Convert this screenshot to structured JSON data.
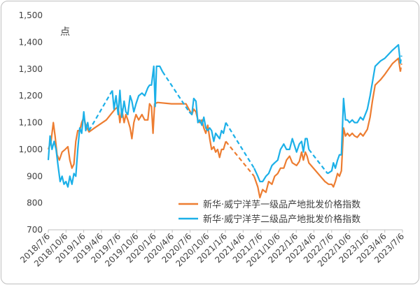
{
  "chart_data": {
    "type": "line",
    "unit_label": "点",
    "ylim": [
      700,
      1500
    ],
    "y_ticks": [
      "700",
      "800",
      "900",
      "1,000",
      "1,100",
      "1,200",
      "1,300",
      "1,400",
      "1,500"
    ],
    "x_ticks": [
      "2018/7/6",
      "2018/10/6",
      "2019/1/6",
      "2019/4/6",
      "2019/7/6",
      "2019/10/6",
      "2020/1/6",
      "2020/4/6",
      "2020/7/6",
      "2020/10/6",
      "2021/1/6",
      "2021/4/6",
      "2021/7/6",
      "2021/10/6",
      "2022/1/6",
      "2022/4/6",
      "2022/7/6",
      "2022/10/6",
      "2023/1/6",
      "2023/4/6",
      "2023/7/6"
    ],
    "grid": "none",
    "legend_position": "bottom-right",
    "colors": {
      "series1": "#ED7D31",
      "series2": "#1CB0E8"
    },
    "series": [
      {
        "name": "新华·威宁洋芋一级品产地批发价格指数",
        "color": "#ED7D31",
        "points": [
          [
            "2018-07-06",
            1000
          ],
          [
            "2018-07-20",
            1030
          ],
          [
            "2018-08-01",
            1100
          ],
          [
            "2018-08-10",
            1050
          ],
          [
            "2018-08-20",
            980
          ],
          [
            "2018-09-01",
            960
          ],
          [
            "2018-09-15",
            990
          ],
          [
            "2018-10-01",
            1000
          ],
          [
            "2018-10-15",
            1010
          ],
          [
            "2018-10-25",
            960
          ],
          [
            "2018-11-05",
            930
          ],
          [
            "2018-11-15",
            945
          ],
          [
            "2018-11-25",
            1030
          ],
          [
            "2018-12-05",
            1070
          ],
          [
            "2018-12-15",
            1070
          ],
          [
            "2018-12-25",
            1100
          ],
          [
            "2019-01-05",
            1120
          ],
          [
            "2019-01-15",
            1090
          ],
          [
            "2019-01-25",
            1075
          ],
          [
            "2019-02-01",
            1065
          ],
          [
            "2019-03-01",
            1080
          ],
          [
            "2019-05-01",
            1110
          ],
          [
            "2019-06-15",
            1150
          ],
          [
            "2019-07-01",
            1160
          ],
          [
            "2019-07-10",
            1100
          ],
          [
            "2019-07-20",
            1150
          ],
          [
            "2019-08-01",
            1100
          ],
          [
            "2019-08-10",
            1130
          ],
          [
            "2019-08-20",
            1110
          ],
          [
            "2019-09-01",
            1080
          ],
          [
            "2019-09-10",
            1040
          ],
          [
            "2019-09-20",
            1100
          ],
          [
            "2019-10-01",
            1130
          ],
          [
            "2019-10-15",
            1110
          ],
          [
            "2019-11-01",
            1130
          ],
          [
            "2019-11-15",
            1110
          ],
          [
            "2019-12-01",
            1110
          ],
          [
            "2019-12-10",
            1170
          ],
          [
            "2019-12-20",
            1160
          ],
          [
            "2019-12-28",
            1060
          ],
          [
            "2020-01-05",
            1170
          ],
          [
            "2020-01-20",
            1175
          ],
          [
            "2020-04-01",
            1170
          ],
          [
            "2020-06-15",
            1170
          ],
          [
            "2020-07-15",
            1130
          ],
          [
            "2020-07-25",
            1150
          ],
          [
            "2020-08-05",
            1140
          ],
          [
            "2020-08-15",
            1110
          ],
          [
            "2020-08-25",
            1100
          ],
          [
            "2020-09-05",
            1110
          ],
          [
            "2020-09-15",
            1080
          ],
          [
            "2020-09-25",
            1060
          ],
          [
            "2020-10-05",
            1090
          ],
          [
            "2020-10-15",
            1040
          ],
          [
            "2020-10-25",
            1000
          ],
          [
            "2020-11-05",
            1010
          ],
          [
            "2020-11-15",
            990
          ],
          [
            "2020-11-25",
            1000
          ],
          [
            "2020-12-05",
            970
          ],
          [
            "2020-12-15",
            1000
          ],
          [
            "2020-12-25",
            1000
          ],
          [
            "2021-01-06",
            1030
          ],
          [
            "2021-06-01",
            900
          ],
          [
            "2021-06-20",
            860
          ],
          [
            "2021-07-01",
            820
          ],
          [
            "2021-07-15",
            850
          ],
          [
            "2021-08-01",
            840
          ],
          [
            "2021-08-15",
            880
          ],
          [
            "2021-09-01",
            870
          ],
          [
            "2021-09-15",
            900
          ],
          [
            "2021-10-01",
            910
          ],
          [
            "2021-10-15",
            930
          ],
          [
            "2021-11-01",
            930
          ],
          [
            "2021-11-15",
            960
          ],
          [
            "2021-12-01",
            975
          ],
          [
            "2021-12-15",
            950
          ],
          [
            "2022-01-06",
            940
          ],
          [
            "2022-01-20",
            955
          ],
          [
            "2022-02-01",
            990
          ],
          [
            "2022-02-10",
            960
          ],
          [
            "2022-02-20",
            990
          ],
          [
            "2022-03-01",
            975
          ],
          [
            "2022-03-10",
            950
          ],
          [
            "2022-06-01",
            880
          ],
          [
            "2022-06-20",
            870
          ],
          [
            "2022-07-06",
            870
          ],
          [
            "2022-07-15",
            860
          ],
          [
            "2022-07-25",
            880
          ],
          [
            "2022-08-05",
            910
          ],
          [
            "2022-08-15",
            900
          ],
          [
            "2022-08-25",
            920
          ],
          [
            "2022-09-05",
            1080
          ],
          [
            "2022-09-15",
            1050
          ],
          [
            "2022-09-25",
            1060
          ],
          [
            "2022-10-06",
            1050
          ],
          [
            "2022-10-20",
            1060
          ],
          [
            "2022-11-01",
            1050
          ],
          [
            "2022-11-15",
            1045
          ],
          [
            "2022-12-01",
            1060
          ],
          [
            "2022-12-15",
            1050
          ],
          [
            "2023-01-06",
            1075
          ],
          [
            "2023-01-20",
            1120
          ],
          [
            "2023-02-01",
            1180
          ],
          [
            "2023-02-15",
            1240
          ],
          [
            "2023-03-01",
            1250
          ],
          [
            "2023-03-15",
            1260
          ],
          [
            "2023-04-06",
            1280
          ],
          [
            "2023-05-15",
            1320
          ],
          [
            "2023-06-15",
            1340
          ],
          [
            "2023-06-25",
            1290
          ],
          [
            "2023-07-01",
            1320
          ]
        ],
        "estimated_segments": [
          [
            "2019-02-01",
            "2019-06-15"
          ],
          [
            "2020-01-20",
            "2020-06-15"
          ],
          [
            "2021-01-06",
            "2021-06-01"
          ],
          [
            "2022-03-10",
            "2022-06-20"
          ],
          [
            "2023-04-06",
            "2023-06-15"
          ],
          [
            "2023-06-25",
            "2023-07-01"
          ]
        ]
      },
      {
        "name": "新华·威宁洋芋二级品产地批发价格指数",
        "color": "#1CB0E8",
        "points": [
          [
            "2018-07-06",
            960
          ],
          [
            "2018-07-15",
            1050
          ],
          [
            "2018-07-25",
            1000
          ],
          [
            "2018-08-05",
            1030
          ],
          [
            "2018-08-15",
            1000
          ],
          [
            "2018-08-25",
            940
          ],
          [
            "2018-09-05",
            880
          ],
          [
            "2018-09-15",
            900
          ],
          [
            "2018-09-25",
            870
          ],
          [
            "2018-10-05",
            880
          ],
          [
            "2018-10-15",
            860
          ],
          [
            "2018-10-25",
            900
          ],
          [
            "2018-11-05",
            870
          ],
          [
            "2018-11-15",
            910
          ],
          [
            "2018-11-25",
            900
          ],
          [
            "2018-12-05",
            1000
          ],
          [
            "2018-12-15",
            1080
          ],
          [
            "2018-12-25",
            1060
          ],
          [
            "2019-01-05",
            1140
          ],
          [
            "2019-01-15",
            1070
          ],
          [
            "2019-01-25",
            1100
          ],
          [
            "2019-02-01",
            1070
          ],
          [
            "2019-06-01",
            1220
          ],
          [
            "2019-06-10",
            1150
          ],
          [
            "2019-06-20",
            1200
          ],
          [
            "2019-07-01",
            1130
          ],
          [
            "2019-07-10",
            1220
          ],
          [
            "2019-07-20",
            1120
          ],
          [
            "2019-08-01",
            1180
          ],
          [
            "2019-08-10",
            1140
          ],
          [
            "2019-08-20",
            1130
          ],
          [
            "2019-09-01",
            1200
          ],
          [
            "2019-09-10",
            1180
          ],
          [
            "2019-09-20",
            1140
          ],
          [
            "2019-10-01",
            1170
          ],
          [
            "2019-10-15",
            1200
          ],
          [
            "2019-11-01",
            1210
          ],
          [
            "2019-11-15",
            1200
          ],
          [
            "2019-12-01",
            1230
          ],
          [
            "2019-12-10",
            1240
          ],
          [
            "2019-12-20",
            1240
          ],
          [
            "2020-01-01",
            1310
          ],
          [
            "2020-01-08",
            1160
          ],
          [
            "2020-01-15",
            1310
          ],
          [
            "2020-02-01",
            1310
          ],
          [
            "2020-02-15",
            1290
          ],
          [
            "2020-07-01",
            1140
          ],
          [
            "2020-07-15",
            1130
          ],
          [
            "2020-07-25",
            1190
          ],
          [
            "2020-08-05",
            1180
          ],
          [
            "2020-08-15",
            1100
          ],
          [
            "2020-08-25",
            1110
          ],
          [
            "2020-09-05",
            1090
          ],
          [
            "2020-09-15",
            1120
          ],
          [
            "2020-09-25",
            1080
          ],
          [
            "2020-10-05",
            1070
          ],
          [
            "2020-10-15",
            1080
          ],
          [
            "2020-10-25",
            1070
          ],
          [
            "2020-11-05",
            1030
          ],
          [
            "2020-11-15",
            1060
          ],
          [
            "2020-11-25",
            1050
          ],
          [
            "2020-12-05",
            1040
          ],
          [
            "2020-12-15",
            1070
          ],
          [
            "2020-12-25",
            1060
          ],
          [
            "2021-01-06",
            1100
          ],
          [
            "2021-06-01",
            930
          ],
          [
            "2021-06-20",
            900
          ],
          [
            "2021-07-01",
            880
          ],
          [
            "2021-07-15",
            880
          ],
          [
            "2021-08-01",
            900
          ],
          [
            "2021-08-15",
            910
          ],
          [
            "2021-09-01",
            940
          ],
          [
            "2021-09-15",
            950
          ],
          [
            "2021-10-01",
            960
          ],
          [
            "2021-10-15",
            1000
          ],
          [
            "2021-11-01",
            1020
          ],
          [
            "2021-11-15",
            1000
          ],
          [
            "2021-12-01",
            1000
          ],
          [
            "2021-12-15",
            1040
          ],
          [
            "2022-01-06",
            990
          ],
          [
            "2022-01-20",
            1020
          ],
          [
            "2022-02-01",
            1030
          ],
          [
            "2022-02-10",
            990
          ],
          [
            "2022-02-20",
            1040
          ],
          [
            "2022-03-01",
            1040
          ],
          [
            "2022-03-10",
            1000
          ],
          [
            "2022-06-15",
            910
          ],
          [
            "2022-07-06",
            920
          ],
          [
            "2022-07-15",
            950
          ],
          [
            "2022-07-25",
            930
          ],
          [
            "2022-08-05",
            960
          ],
          [
            "2022-08-15",
            980
          ],
          [
            "2022-08-25",
            980
          ],
          [
            "2022-09-05",
            1190
          ],
          [
            "2022-09-15",
            1110
          ],
          [
            "2022-09-25",
            1110
          ],
          [
            "2022-10-06",
            1100
          ],
          [
            "2022-10-20",
            1110
          ],
          [
            "2022-11-01",
            1100
          ],
          [
            "2022-11-15",
            1100
          ],
          [
            "2022-12-01",
            1120
          ],
          [
            "2022-12-15",
            1110
          ],
          [
            "2023-01-06",
            1150
          ],
          [
            "2023-01-20",
            1200
          ],
          [
            "2023-02-01",
            1250
          ],
          [
            "2023-02-15",
            1310
          ],
          [
            "2023-03-01",
            1320
          ],
          [
            "2023-03-15",
            1330
          ],
          [
            "2023-04-06",
            1340
          ],
          [
            "2023-05-15",
            1370
          ],
          [
            "2023-06-15",
            1390
          ],
          [
            "2023-06-25",
            1320
          ],
          [
            "2023-07-01",
            1350
          ]
        ],
        "estimated_segments": [
          [
            "2019-02-01",
            "2019-06-01"
          ],
          [
            "2020-02-15",
            "2020-07-01"
          ],
          [
            "2021-01-06",
            "2021-06-01"
          ],
          [
            "2022-03-10",
            "2022-06-15"
          ],
          [
            "2023-04-06",
            "2023-06-15"
          ],
          [
            "2023-06-25",
            "2023-07-01"
          ]
        ]
      }
    ]
  }
}
